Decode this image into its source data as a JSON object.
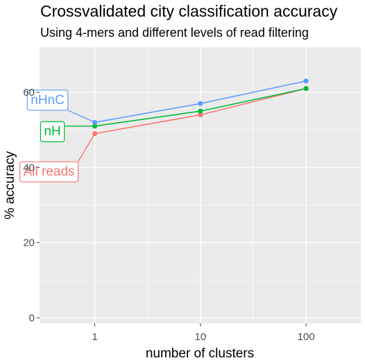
{
  "chart_data": {
    "type": "line",
    "title": "Crossvalidated city classification accuracy",
    "subtitle": "Using 4-mers and different levels of read filtering",
    "xlabel": "number of clusters",
    "ylabel": "% accuracy",
    "x_scale": "log10",
    "x": [
      1,
      10,
      100
    ],
    "x_ticks": [
      "1",
      "10",
      "100"
    ],
    "xlim": [
      0.3,
      330
    ],
    "y_ticks": [
      "0",
      "20",
      "40",
      "60"
    ],
    "ylim": [
      -1.5,
      72
    ],
    "grid": true,
    "legend": "direct labels at left of lines",
    "background": "#ebebeb",
    "series": [
      {
        "name": "nHnC",
        "values": [
          52,
          57,
          63
        ],
        "color": "#619cff"
      },
      {
        "name": "nH",
        "values": [
          51,
          55,
          61
        ],
        "color": "#00ba38"
      },
      {
        "name": "All reads",
        "values": [
          49,
          54,
          61
        ],
        "color": "#f8766d"
      }
    ]
  }
}
